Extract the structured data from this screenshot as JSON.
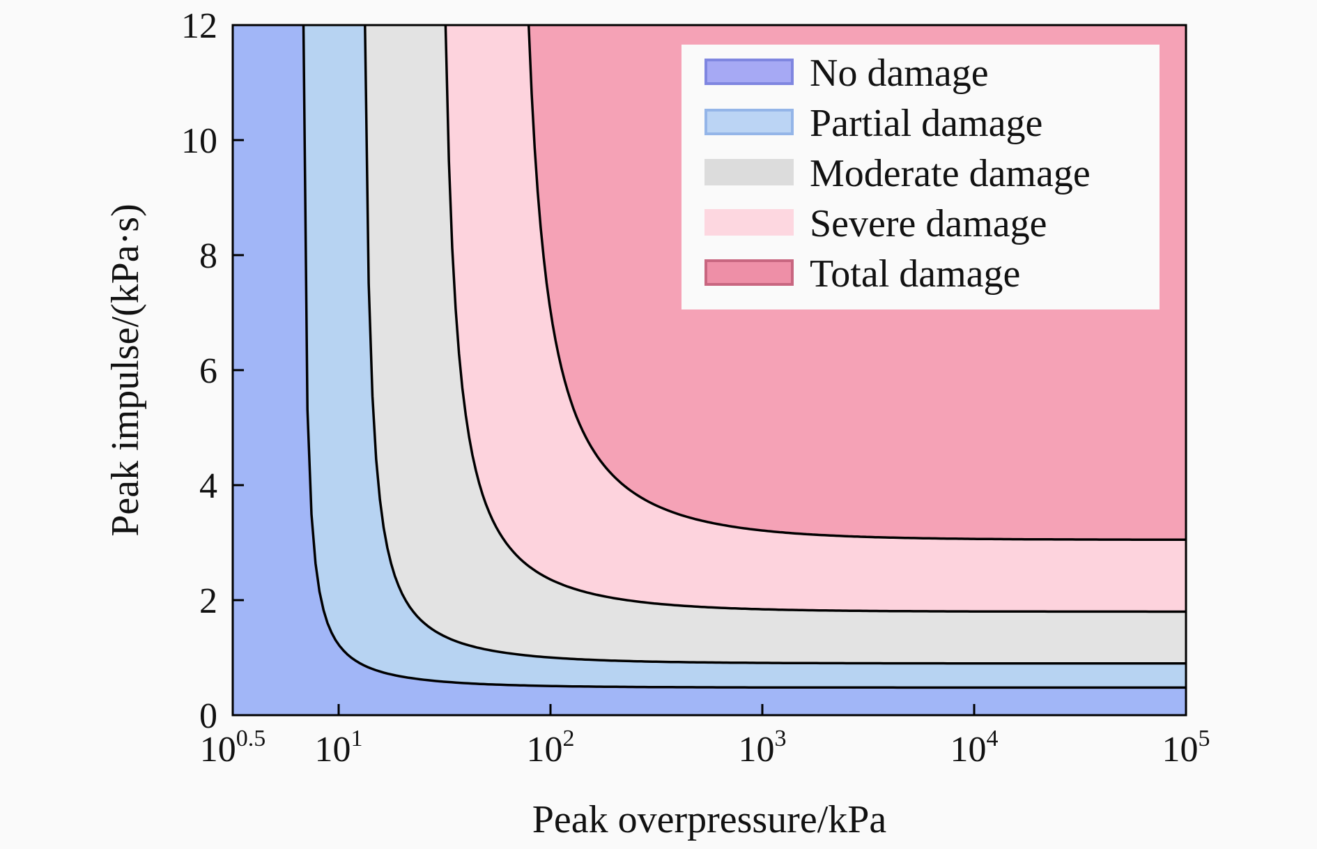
{
  "chart_data": {
    "type": "area",
    "title": "",
    "xlabel": "Peak overpressure/kPa",
    "ylabel": "Peak impulse/(kPa·s)",
    "xscale": "log",
    "xlim": [
      3.162,
      100000
    ],
    "ylim": [
      0,
      12
    ],
    "x_ticks": [
      {
        "base": "10",
        "exp": "0.5"
      },
      {
        "base": "10",
        "exp": "1"
      },
      {
        "base": "10",
        "exp": "2"
      },
      {
        "base": "10",
        "exp": "3"
      },
      {
        "base": "10",
        "exp": "4"
      },
      {
        "base": "10",
        "exp": "5"
      }
    ],
    "y_ticks": [
      "0",
      "2",
      "4",
      "6",
      "8",
      "10",
      "12"
    ],
    "legend_position": "top-right",
    "regions": [
      {
        "name": "No damage",
        "color": "#a1b6f7"
      },
      {
        "name": "Partial damage",
        "color": "#b7d3f2"
      },
      {
        "name": "Moderate damage",
        "color": "#e3e3e3"
      },
      {
        "name": "Severe damage",
        "color": "#fdd3dd"
      },
      {
        "name": "Total damage",
        "color": "#f5a2b6"
      }
    ],
    "legend_swatches": [
      {
        "fill": "#a6a9f4",
        "stroke": "#7f86e0"
      },
      {
        "fill": "#bbd4f4",
        "stroke": "#94b5e8"
      },
      {
        "fill": "#dcdcdc",
        "stroke": "#dcdcdc"
      },
      {
        "fill": "#fdd7e0",
        "stroke": "#fdd7e0"
      },
      {
        "fill": "#ee8fa7",
        "stroke": "#c86680"
      }
    ],
    "boundaries": [
      {
        "between": [
          "No damage",
          "Partial damage"
        ],
        "p_asymptote": 6.6,
        "i_asymptote": 0.48
      },
      {
        "between": [
          "Partial damage",
          "Moderate damage"
        ],
        "p_asymptote": 12.5,
        "i_asymptote": 0.9
      },
      {
        "between": [
          "Moderate damage",
          "Severe damage"
        ],
        "p_asymptote": 28.0,
        "i_asymptote": 1.8
      },
      {
        "between": [
          "Severe damage",
          "Total damage"
        ],
        "p_asymptote": 62.0,
        "i_asymptote": 3.05
      }
    ]
  }
}
